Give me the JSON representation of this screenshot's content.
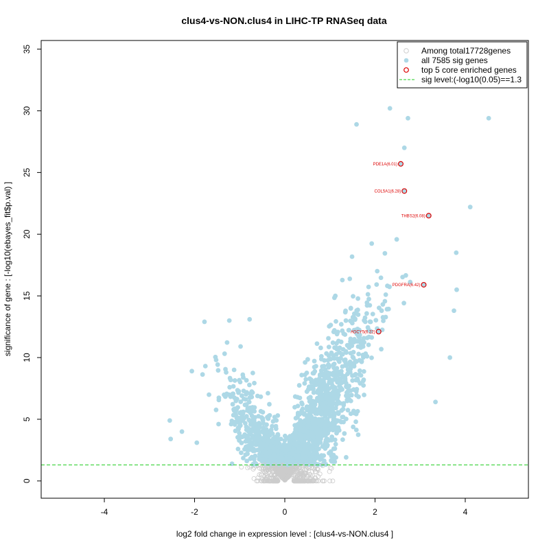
{
  "chart_data": {
    "type": "scatter",
    "title": "clus4-vs-NON.clus4 in LIHC-TP RNASeq data",
    "xlabel": "log2 fold change in expression level : [clus4-vs-NON.clus4 ]",
    "ylabel": "significance of gene : [-log10(ebayes_fit$p.val) ]",
    "xlim": [
      -5.4,
      5.4
    ],
    "ylim": [
      -1.4,
      35.7
    ],
    "x_ticks": [
      -4,
      -2,
      0,
      2,
      4
    ],
    "y_ticks": [
      0,
      5,
      10,
      15,
      20,
      25,
      30,
      35
    ],
    "legend": {
      "position": "top-right",
      "entries": [
        {
          "label": "Among total17728genes",
          "symbol": "open-circle",
          "color": "#cccccc"
        },
        {
          "label": "all 7585 sig genes",
          "symbol": "filled-circle",
          "color": "#add8e6"
        },
        {
          "label": "top 5 core enriched genes",
          "symbol": "open-circle",
          "color": "#dd0000"
        },
        {
          "label": "sig level:(-log10(0.05)==1.3",
          "symbol": "dashed-line",
          "color": "#22cc22"
        }
      ]
    },
    "sig_level": 1.3,
    "colors": {
      "nonsig": "#cccccc",
      "sig": "#add8e6",
      "top": "#dd0000",
      "threshold": "#22cc22"
    },
    "top_genes": [
      {
        "label": "PDE1A(6.01)",
        "x": 2.57,
        "y": 25.7
      },
      {
        "label": "COL5A1(6.28)",
        "x": 2.65,
        "y": 23.5
      },
      {
        "label": "THBS2(6.08)",
        "x": 3.19,
        "y": 21.5
      },
      {
        "label": "PDGFRA(6.42)",
        "x": 3.08,
        "y": 15.9
      },
      {
        "label": "ADCY5(6.22)",
        "x": 2.08,
        "y": 12.1
      }
    ],
    "highlight_points": [
      {
        "x": 2.33,
        "y": 30.2
      },
      {
        "x": 1.59,
        "y": 28.9
      },
      {
        "x": 4.52,
        "y": 29.4
      },
      {
        "x": 2.73,
        "y": 29.4
      },
      {
        "x": 2.65,
        "y": 27.0
      },
      {
        "x": 4.11,
        "y": 22.2
      },
      {
        "x": 3.8,
        "y": 18.5
      },
      {
        "x": 3.34,
        "y": 6.4
      },
      {
        "x": 3.66,
        "y": 10.0
      },
      {
        "x": 3.81,
        "y": 15.5
      },
      {
        "x": 3.75,
        "y": 13.8
      },
      {
        "x": -2.55,
        "y": 4.9
      },
      {
        "x": -2.53,
        "y": 3.4
      },
      {
        "x": -2.06,
        "y": 8.9
      },
      {
        "x": -1.78,
        "y": 12.9
      },
      {
        "x": -1.23,
        "y": 13.0
      },
      {
        "x": -0.78,
        "y": 13.1
      },
      {
        "x": -0.98,
        "y": 10.9
      },
      {
        "x": -2.28,
        "y": 4.0
      },
      {
        "x": -1.95,
        "y": 3.1
      }
    ]
  }
}
